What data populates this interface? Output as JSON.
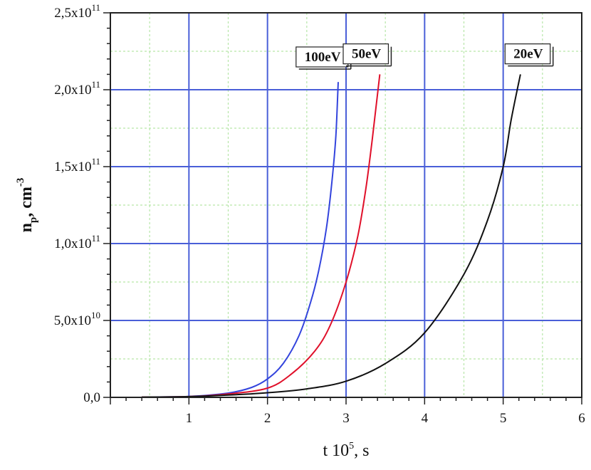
{
  "chart_data": {
    "type": "line",
    "xlabel": {
      "main": "t 10",
      "sup": "5",
      "tail": ", s"
    },
    "ylabel": {
      "main": "n",
      "sub": "p",
      "mid": ", cm",
      "sup": "-3"
    },
    "xlim": [
      0,
      6
    ],
    "ylim": [
      0,
      250000000000
    ],
    "x_ticks": [
      {
        "value": 1,
        "label": "1"
      },
      {
        "value": 2,
        "label": "2"
      },
      {
        "value": 3,
        "label": "3"
      },
      {
        "value": 4,
        "label": "4"
      },
      {
        "value": 5,
        "label": "5"
      },
      {
        "value": 6,
        "label": "6"
      }
    ],
    "y_ticks": [
      {
        "value": 0,
        "mantissa": "0,0",
        "exp": ""
      },
      {
        "value": 50000000000,
        "mantissa": "5,0x10",
        "exp": "10"
      },
      {
        "value": 100000000000,
        "mantissa": "1,0x10",
        "exp": "11"
      },
      {
        "value": 150000000000,
        "mantissa": "1,5x10",
        "exp": "11"
      },
      {
        "value": 200000000000,
        "mantissa": "2,0x10",
        "exp": "11"
      },
      {
        "value": 250000000000,
        "mantissa": "2,5x10",
        "exp": "11"
      }
    ],
    "grid": true,
    "series": [
      {
        "name": "100eV",
        "color": "#3344dd",
        "points": [
          [
            0.4,
            200000000.0
          ],
          [
            1.0,
            600000000.0
          ],
          [
            1.5,
            2800000000.0
          ],
          [
            1.8,
            6500000000.0
          ],
          [
            2.0,
            12000000000.0
          ],
          [
            2.2,
            22000000000.0
          ],
          [
            2.4,
            40000000000.0
          ],
          [
            2.55,
            62000000000.0
          ],
          [
            2.65,
            82000000000.0
          ],
          [
            2.75,
            110000000000.0
          ],
          [
            2.82,
            140000000000.0
          ],
          [
            2.87,
            170000000000.0
          ],
          [
            2.9,
            205000000000.0
          ]
        ],
        "label_at": [
          2.4,
          219000000000.0
        ]
      },
      {
        "name": "50eV",
        "color": "#e0102a",
        "points": [
          [
            0.4,
            200000000.0
          ],
          [
            1.0,
            500000000.0
          ],
          [
            1.5,
            2200000000.0
          ],
          [
            2.0,
            6000000000.0
          ],
          [
            2.3,
            15000000000.0
          ],
          [
            2.6,
            30000000000.0
          ],
          [
            2.8,
            47000000000.0
          ],
          [
            3.0,
            75000000000.0
          ],
          [
            3.15,
            105000000000.0
          ],
          [
            3.25,
            135000000000.0
          ],
          [
            3.32,
            162000000000.0
          ],
          [
            3.38,
            188000000000.0
          ],
          [
            3.43,
            210000000000.0
          ]
        ],
        "label_at": [
          3.0,
          221000000000.0
        ]
      },
      {
        "name": "20eV",
        "color": "#111111",
        "points": [
          [
            0.4,
            200000000.0
          ],
          [
            1.0,
            500000000.0
          ],
          [
            1.5,
            1500000000.0
          ],
          [
            2.0,
            3000000000.0
          ],
          [
            2.5,
            5500000000.0
          ],
          [
            3.0,
            10500000000.0
          ],
          [
            3.5,
            22000000000.0
          ],
          [
            4.0,
            42000000000.0
          ],
          [
            4.5,
            80000000000.0
          ],
          [
            4.8,
            115000000000.0
          ],
          [
            5.0,
            150000000000.0
          ],
          [
            5.1,
            180000000000.0
          ],
          [
            5.22,
            210000000000.0
          ]
        ],
        "label_at": [
          5.06,
          221000000000.0
        ]
      }
    ]
  }
}
